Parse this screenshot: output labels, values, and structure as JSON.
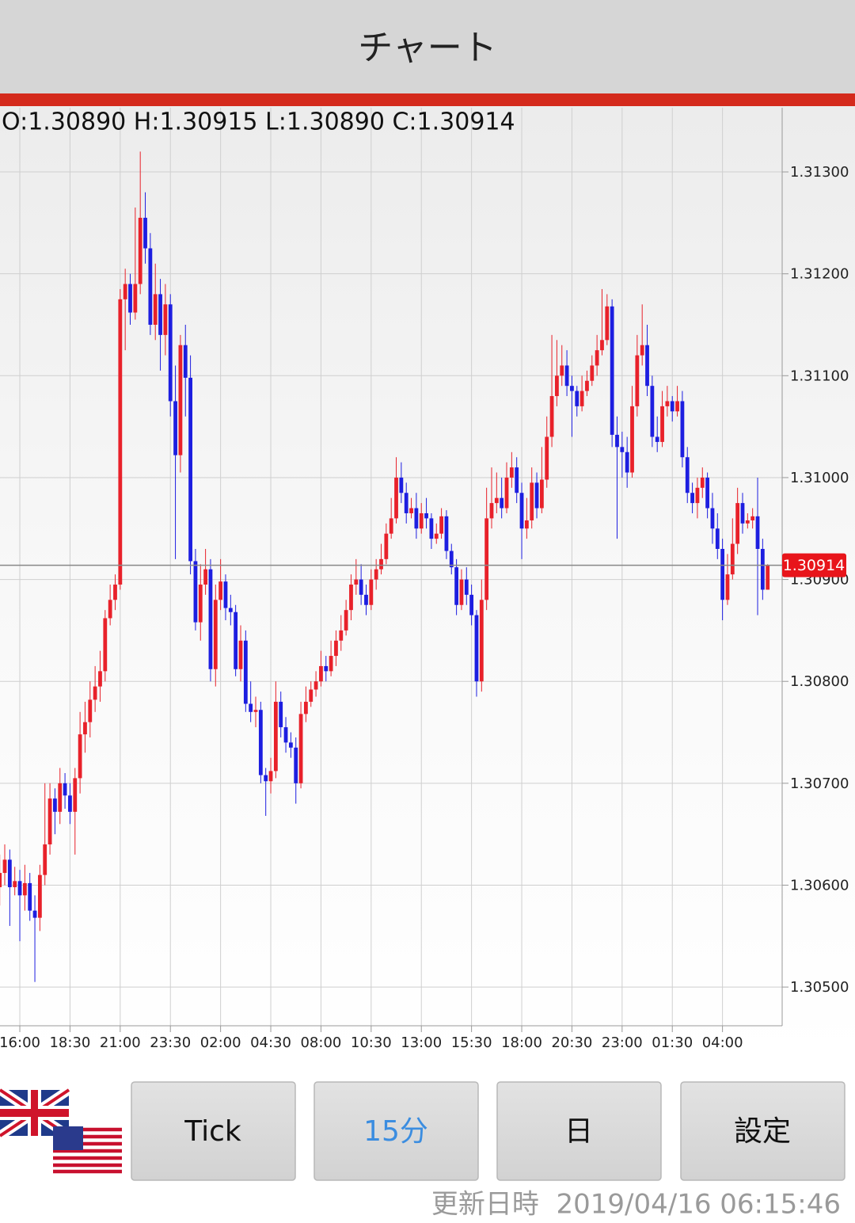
{
  "header": {
    "title": "チャート"
  },
  "chart_data": {
    "type": "candlestick",
    "ohlc_label": "O:1.30890 H:1.30915 L:1.30890 C:1.30914",
    "last_price_label": "1.30914",
    "up_color": "#e8212a",
    "down_color": "#1d1ee0",
    "grid": true,
    "ylim": [
      1.30462,
      1.31363
    ],
    "yticks": [
      {
        "value": 1.305,
        "label": "1.30500"
      },
      {
        "value": 1.306,
        "label": "1.30600"
      },
      {
        "value": 1.307,
        "label": "1.30700"
      },
      {
        "value": 1.308,
        "label": "1.30800"
      },
      {
        "value": 1.309,
        "label": "1.30900"
      },
      {
        "value": 1.31,
        "label": "1.31000"
      },
      {
        "value": 1.311,
        "label": "1.31100"
      },
      {
        "value": 1.312,
        "label": "1.31200"
      },
      {
        "value": 1.313,
        "label": "1.31300"
      }
    ],
    "categories": [
      null,
      null,
      null,
      null,
      "16:00",
      null,
      null,
      null,
      null,
      null,
      null,
      null,
      null,
      null,
      "18:30",
      null,
      null,
      null,
      null,
      null,
      null,
      null,
      null,
      null,
      "21:00",
      null,
      null,
      null,
      null,
      null,
      null,
      null,
      null,
      null,
      "23:30",
      null,
      null,
      null,
      null,
      null,
      null,
      null,
      null,
      null,
      "02:00",
      null,
      null,
      null,
      null,
      null,
      null,
      null,
      null,
      null,
      "04:30",
      null,
      null,
      null,
      null,
      null,
      null,
      null,
      null,
      null,
      "08:00",
      null,
      null,
      null,
      null,
      null,
      null,
      null,
      null,
      null,
      "10:30",
      null,
      null,
      null,
      null,
      null,
      null,
      null,
      null,
      null,
      "13:00",
      null,
      null,
      null,
      null,
      null,
      null,
      null,
      null,
      null,
      "15:30",
      null,
      null,
      null,
      null,
      null,
      null,
      null,
      null,
      null,
      "18:00",
      null,
      null,
      null,
      null,
      null,
      null,
      null,
      null,
      null,
      "20:30",
      null,
      null,
      null,
      null,
      null,
      null,
      null,
      null,
      null,
      "23:00",
      null,
      null,
      null,
      null,
      null,
      null,
      null,
      null,
      null,
      "01:30",
      null,
      null,
      null,
      null,
      null,
      null,
      null,
      null,
      null,
      "04:00",
      null,
      null,
      null,
      null,
      null,
      null,
      null,
      null,
      null
    ],
    "open": [
      1.30598,
      1.30612,
      1.30625,
      1.30598,
      1.30604,
      1.3059,
      1.30602,
      1.30575,
      1.30568,
      1.3061,
      1.3064,
      1.30685,
      1.30672,
      1.307,
      1.30688,
      1.30672,
      1.30705,
      1.30748,
      1.3076,
      1.30782,
      1.30795,
      1.3081,
      1.30862,
      1.3088,
      1.30895,
      1.31175,
      1.3119,
      1.31162,
      1.3119,
      1.31255,
      1.31225,
      1.3115,
      1.3118,
      1.3114,
      1.3117,
      1.31075,
      1.31022,
      1.3113,
      1.31098,
      1.30918,
      1.30858,
      1.30895,
      1.3091,
      1.30812,
      1.3088,
      1.30898,
      1.30872,
      1.30868,
      1.30812,
      1.3084,
      1.30778,
      1.3077,
      1.30772,
      1.30708,
      1.30702,
      1.30712,
      1.3078,
      1.30755,
      1.3074,
      1.30735,
      1.307,
      1.30768,
      1.3078,
      1.30792,
      1.308,
      1.30815,
      1.3081,
      1.30825,
      1.3084,
      1.3085,
      1.3087,
      1.30895,
      1.309,
      1.30885,
      1.30875,
      1.309,
      1.3091,
      1.3092,
      1.30945,
      1.3096,
      1.31,
      1.30985,
      1.30965,
      1.3097,
      1.3095,
      1.30965,
      1.3096,
      1.3094,
      1.30945,
      1.30962,
      1.30928,
      1.30912,
      1.30875,
      1.309,
      1.30885,
      1.30865,
      1.308,
      1.3088,
      1.3096,
      1.30975,
      1.3098,
      1.3097,
      1.31,
      1.3101,
      1.30985,
      1.3095,
      1.30958,
      1.30995,
      1.3097,
      1.30998,
      1.3104,
      1.3108,
      1.311,
      1.3111,
      1.3109,
      1.31085,
      1.3107,
      1.31085,
      1.31095,
      1.3111,
      1.31125,
      1.31135,
      1.31168,
      1.31042,
      1.3103,
      1.31025,
      1.31005,
      1.3107,
      1.3112,
      1.3113,
      1.3109,
      1.3104,
      1.31035,
      1.3107,
      1.31075,
      1.31065,
      1.31075,
      1.3102,
      1.30985,
      1.30975,
      1.3099,
      1.31,
      1.3097,
      1.3095,
      1.3093,
      1.3088,
      1.30905,
      1.30935,
      1.30975,
      1.30955,
      1.30958,
      1.30962,
      1.3093,
      1.3089
    ],
    "high": [
      1.3063,
      1.3064,
      1.30635,
      1.30618,
      1.30615,
      1.3062,
      1.30612,
      1.3059,
      1.3062,
      1.307,
      1.307,
      1.30695,
      1.30715,
      1.3071,
      1.307,
      1.30715,
      1.3077,
      1.3078,
      1.308,
      1.30815,
      1.3083,
      1.3087,
      1.30895,
      1.30905,
      1.31185,
      1.31205,
      1.312,
      1.31265,
      1.3132,
      1.3128,
      1.3124,
      1.3121,
      1.31195,
      1.3119,
      1.3118,
      1.3111,
      1.3114,
      1.3115,
      1.3112,
      1.3093,
      1.30915,
      1.3093,
      1.3092,
      1.30895,
      1.3092,
      1.30905,
      1.30885,
      1.30875,
      1.30855,
      1.3085,
      1.308,
      1.30785,
      1.3078,
      1.30715,
      1.30725,
      1.308,
      1.3079,
      1.30765,
      1.3075,
      1.30745,
      1.3078,
      1.30795,
      1.308,
      1.3081,
      1.3083,
      1.30825,
      1.3084,
      1.3085,
      1.30865,
      1.3088,
      1.30905,
      1.3092,
      1.30915,
      1.30895,
      1.3091,
      1.3092,
      1.30935,
      1.30955,
      1.3098,
      1.3102,
      1.31015,
      1.30995,
      1.3098,
      1.30985,
      1.30975,
      1.3098,
      1.30965,
      1.30955,
      1.3097,
      1.30968,
      1.30935,
      1.3092,
      1.3091,
      1.30912,
      1.30895,
      1.3087,
      1.309,
      1.3099,
      1.3101,
      1.31005,
      1.31,
      1.31015,
      1.31025,
      1.3102,
      1.30995,
      1.3098,
      1.3101,
      1.31005,
      1.3103,
      1.3106,
      1.3114,
      1.31135,
      1.3113,
      1.31125,
      1.311,
      1.3109,
      1.311,
      1.31105,
      1.3112,
      1.3114,
      1.31185,
      1.3118,
      1.31175,
      1.3106,
      1.31045,
      1.3104,
      1.3109,
      1.3114,
      1.3117,
      1.3115,
      1.311,
      1.3106,
      1.31085,
      1.3109,
      1.3108,
      1.3109,
      1.31085,
      1.3103,
      1.30995,
      1.31,
      1.3101,
      1.31005,
      1.30985,
      1.30965,
      1.3094,
      1.30925,
      1.3096,
      1.3099,
      1.30985,
      1.30965,
      1.3097,
      1.31,
      1.3094,
      1.30915
    ],
    "low": [
      1.3058,
      1.306,
      1.3056,
      1.3059,
      1.30545,
      1.30575,
      1.30565,
      1.30505,
      1.30555,
      1.306,
      1.3063,
      1.3065,
      1.3066,
      1.30675,
      1.3066,
      1.3063,
      1.3069,
      1.3073,
      1.30745,
      1.3077,
      1.3078,
      1.308,
      1.30855,
      1.3087,
      1.3089,
      1.31125,
      1.3115,
      1.31155,
      1.3118,
      1.3121,
      1.3114,
      1.31135,
      1.31105,
      1.3112,
      1.3106,
      1.3092,
      1.31005,
      1.3106,
      1.30905,
      1.3085,
      1.3084,
      1.30885,
      1.308,
      1.30795,
      1.3087,
      1.3086,
      1.30855,
      1.30805,
      1.308,
      1.3077,
      1.3076,
      1.30755,
      1.307,
      1.30668,
      1.3069,
      1.30705,
      1.30745,
      1.3073,
      1.30725,
      1.3068,
      1.30695,
      1.3076,
      1.30775,
      1.30785,
      1.30795,
      1.308,
      1.30805,
      1.30815,
      1.3083,
      1.30845,
      1.3086,
      1.30885,
      1.30875,
      1.30865,
      1.3087,
      1.3089,
      1.30905,
      1.30915,
      1.3094,
      1.30955,
      1.30975,
      1.30955,
      1.3096,
      1.3094,
      1.30945,
      1.3095,
      1.3093,
      1.30935,
      1.3094,
      1.3092,
      1.30905,
      1.30865,
      1.3087,
      1.30875,
      1.30855,
      1.30785,
      1.3079,
      1.3087,
      1.3095,
      1.30965,
      1.3096,
      1.30965,
      1.3099,
      1.30975,
      1.3092,
      1.3094,
      1.3095,
      1.3096,
      1.30965,
      1.3099,
      1.3103,
      1.3107,
      1.3109,
      1.3108,
      1.3104,
      1.3106,
      1.31065,
      1.3108,
      1.3109,
      1.311,
      1.3112,
      1.3113,
      1.3103,
      1.3094,
      1.31,
      1.3099,
      1.31,
      1.3106,
      1.3111,
      1.3108,
      1.3103,
      1.31025,
      1.3103,
      1.3106,
      1.31055,
      1.3106,
      1.3101,
      1.30975,
      1.30965,
      1.3096,
      1.3098,
      1.3096,
      1.30935,
      1.3092,
      1.3086,
      1.30875,
      1.309,
      1.30925,
      1.30945,
      1.3095,
      1.3095,
      1.30865,
      1.3088,
      1.3089
    ],
    "close": [
      1.30612,
      1.30625,
      1.30598,
      1.30604,
      1.3059,
      1.30602,
      1.30575,
      1.30568,
      1.3061,
      1.3064,
      1.30685,
      1.30672,
      1.307,
      1.30688,
      1.30672,
      1.30705,
      1.30748,
      1.3076,
      1.30782,
      1.30795,
      1.3081,
      1.30862,
      1.3088,
      1.30895,
      1.31175,
      1.3119,
      1.31162,
      1.3119,
      1.31255,
      1.31225,
      1.3115,
      1.3118,
      1.3114,
      1.3117,
      1.31075,
      1.31022,
      1.3113,
      1.31098,
      1.30918,
      1.30858,
      1.30895,
      1.3091,
      1.30812,
      1.3088,
      1.30898,
      1.30872,
      1.30868,
      1.30812,
      1.3084,
      1.30778,
      1.3077,
      1.30772,
      1.30708,
      1.30702,
      1.30712,
      1.3078,
      1.30755,
      1.3074,
      1.30735,
      1.307,
      1.30768,
      1.3078,
      1.30792,
      1.308,
      1.30815,
      1.3081,
      1.30825,
      1.3084,
      1.3085,
      1.3087,
      1.30895,
      1.309,
      1.30885,
      1.30875,
      1.309,
      1.3091,
      1.3092,
      1.30945,
      1.3096,
      1.31,
      1.30985,
      1.30965,
      1.3097,
      1.3095,
      1.30965,
      1.3096,
      1.3094,
      1.30945,
      1.30962,
      1.30928,
      1.30912,
      1.30875,
      1.309,
      1.30885,
      1.30865,
      1.308,
      1.3088,
      1.3096,
      1.30975,
      1.3098,
      1.3097,
      1.31,
      1.3101,
      1.30985,
      1.3095,
      1.30958,
      1.30995,
      1.3097,
      1.30998,
      1.3104,
      1.3108,
      1.311,
      1.3111,
      1.3109,
      1.31085,
      1.3107,
      1.31085,
      1.31095,
      1.3111,
      1.31125,
      1.31135,
      1.31168,
      1.31042,
      1.3103,
      1.31025,
      1.31005,
      1.3107,
      1.3112,
      1.3113,
      1.3109,
      1.3104,
      1.31035,
      1.3107,
      1.31075,
      1.31065,
      1.31075,
      1.3102,
      1.30985,
      1.30975,
      1.3099,
      1.31,
      1.3097,
      1.3095,
      1.3093,
      1.3088,
      1.30905,
      1.30935,
      1.30975,
      1.30955,
      1.30958,
      1.30962,
      1.3093,
      1.3089,
      1.30914
    ]
  },
  "buttons": [
    "Tick",
    "15分",
    "日",
    "設定"
  ],
  "footer": {
    "updated": "更新日時  2019/04/16 06:15:46"
  }
}
